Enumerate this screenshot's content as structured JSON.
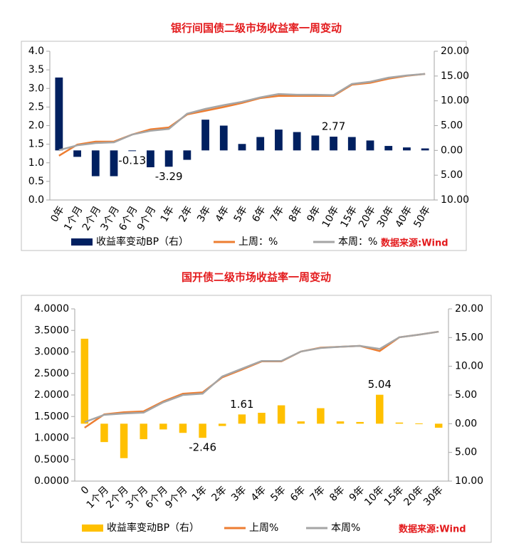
{
  "chart_data": [
    {
      "type": "combo",
      "title": "银行间国债二级市场收益率一周变动",
      "categories": [
        "0年",
        "1个月",
        "2个月",
        "3个月",
        "6个月",
        "9个月",
        "1年",
        "2年",
        "3年",
        "4年",
        "5年",
        "6年",
        "7年",
        "8年",
        "9年",
        "10年",
        "15年",
        "20年",
        "30年",
        "40年",
        "50年"
      ],
      "series": [
        {
          "name": "收益率变动BP（右）",
          "type": "bar",
          "axis": "y2",
          "color": "#002060",
          "values": [
            14.7,
            -1.3,
            -5.2,
            -5.2,
            -0.13,
            -3.4,
            -3.29,
            -1.9,
            6.2,
            5.0,
            1.3,
            2.7,
            4.2,
            3.7,
            3.0,
            2.77,
            2.7,
            2.0,
            0.9,
            0.6,
            0.4
          ],
          "value_labels": [
            null,
            null,
            null,
            null,
            "-0.13",
            null,
            "-3.29",
            null,
            null,
            null,
            null,
            null,
            null,
            null,
            null,
            "2.77",
            null,
            null,
            null,
            null,
            null
          ]
        },
        {
          "name": "上周：%",
          "type": "line",
          "color": "#ed7d31",
          "values": [
            1.19,
            1.49,
            1.57,
            1.57,
            1.76,
            1.9,
            1.95,
            2.3,
            2.4,
            2.5,
            2.61,
            2.74,
            2.8,
            2.8,
            2.8,
            2.8,
            3.1,
            3.15,
            3.26,
            3.34,
            3.39
          ]
        },
        {
          "name": "本周：%",
          "type": "line",
          "color": "#a5a5a5",
          "values": [
            1.34,
            1.47,
            1.53,
            1.55,
            1.76,
            1.86,
            1.91,
            2.32,
            2.45,
            2.55,
            2.64,
            2.76,
            2.85,
            2.83,
            2.83,
            2.82,
            3.12,
            3.18,
            3.29,
            3.35,
            3.39
          ]
        }
      ],
      "ylim": [
        0,
        4
      ],
      "yticks": [
        {
          "value": 0,
          "label": "0.0"
        },
        0.5,
        {
          "value": 1,
          "label": "1.0"
        },
        1.5,
        {
          "value": 2,
          "label": "2.0"
        },
        2.5,
        {
          "value": 3,
          "label": "3.0"
        },
        3.5,
        {
          "value": 4,
          "label": "4.0"
        }
      ],
      "y2lim": [
        -10,
        20
      ],
      "y2ticks": [
        {
          "value": -10,
          "label": "10.00"
        },
        {
          "value": -5,
          "label": "5.00"
        },
        {
          "value": 0,
          "label": "0.00"
        },
        {
          "value": 5,
          "label": "5.00"
        },
        {
          "value": 10,
          "label": "10.00"
        },
        {
          "value": 15,
          "label": "15.00"
        },
        {
          "value": 20,
          "label": "20.00"
        }
      ],
      "y2_negative_tick_color": "#ff0000",
      "legend": "bottom",
      "grid": false,
      "source": "数据来源:Wind"
    },
    {
      "type": "combo",
      "title": "国开债二级市场收益率一周变动",
      "categories": [
        "0",
        "1个月",
        "2个月",
        "3个月",
        "6个月",
        "9个月",
        "1年",
        "2年",
        "3年",
        "4年",
        "5年",
        "6年",
        "7年",
        "8年",
        "9年",
        "10年",
        "15年",
        "20年",
        "30年"
      ],
      "series": [
        {
          "name": "收益率变动BP（右）",
          "type": "bar",
          "axis": "y2",
          "color": "#ffc000",
          "values": [
            14.8,
            -3.2,
            -6.0,
            -2.7,
            -1.0,
            -1.6,
            -2.46,
            -0.4,
            1.61,
            1.9,
            3.2,
            0.4,
            2.7,
            0.4,
            0.3,
            5.04,
            0.2,
            0.05,
            -0.7
          ],
          "value_labels": [
            null,
            null,
            null,
            null,
            null,
            null,
            "-2.46",
            null,
            "1.61",
            null,
            null,
            null,
            null,
            null,
            null,
            "5.04",
            null,
            null,
            null
          ]
        },
        {
          "name": "上周%",
          "type": "line",
          "color": "#ed7d31",
          "values": [
            1.24,
            1.55,
            1.6,
            1.62,
            1.85,
            2.03,
            2.06,
            2.41,
            2.59,
            2.78,
            2.78,
            3.01,
            3.1,
            3.12,
            3.14,
            3.02,
            3.34,
            3.4,
            3.47
          ]
        },
        {
          "name": "本周%",
          "type": "line",
          "color": "#a5a5a5",
          "values": [
            1.37,
            1.54,
            1.57,
            1.59,
            1.83,
            2.0,
            2.03,
            2.43,
            2.61,
            2.79,
            2.79,
            3.01,
            3.09,
            3.12,
            3.14,
            3.07,
            3.34,
            3.4,
            3.47
          ]
        }
      ],
      "ylim": [
        0,
        4
      ],
      "yticks": [
        {
          "value": 0,
          "label": "0.0000"
        },
        {
          "value": 0.5,
          "label": "0.5000"
        },
        {
          "value": 1,
          "label": "1.0000"
        },
        {
          "value": 1.5,
          "label": "1.5000"
        },
        {
          "value": 2,
          "label": "2.0000"
        },
        {
          "value": 2.5,
          "label": "2.5000"
        },
        {
          "value": 3,
          "label": "3.0000"
        },
        {
          "value": 3.5,
          "label": "3.5000"
        },
        {
          "value": 4,
          "label": "4.0000"
        }
      ],
      "y2lim": [
        -10,
        20
      ],
      "y2ticks": [
        {
          "value": -10,
          "label": "10.00"
        },
        {
          "value": -5,
          "label": "5.00"
        },
        {
          "value": 0,
          "label": "0.00"
        },
        {
          "value": 5,
          "label": "5.00"
        },
        {
          "value": 10,
          "label": "10.00"
        },
        {
          "value": 15,
          "label": "15.00"
        },
        {
          "value": 20,
          "label": "20.00"
        }
      ],
      "y2_negative_tick_color": "#ff0000",
      "legend": "bottom",
      "grid": false,
      "source": "数据来源:Wind"
    }
  ]
}
